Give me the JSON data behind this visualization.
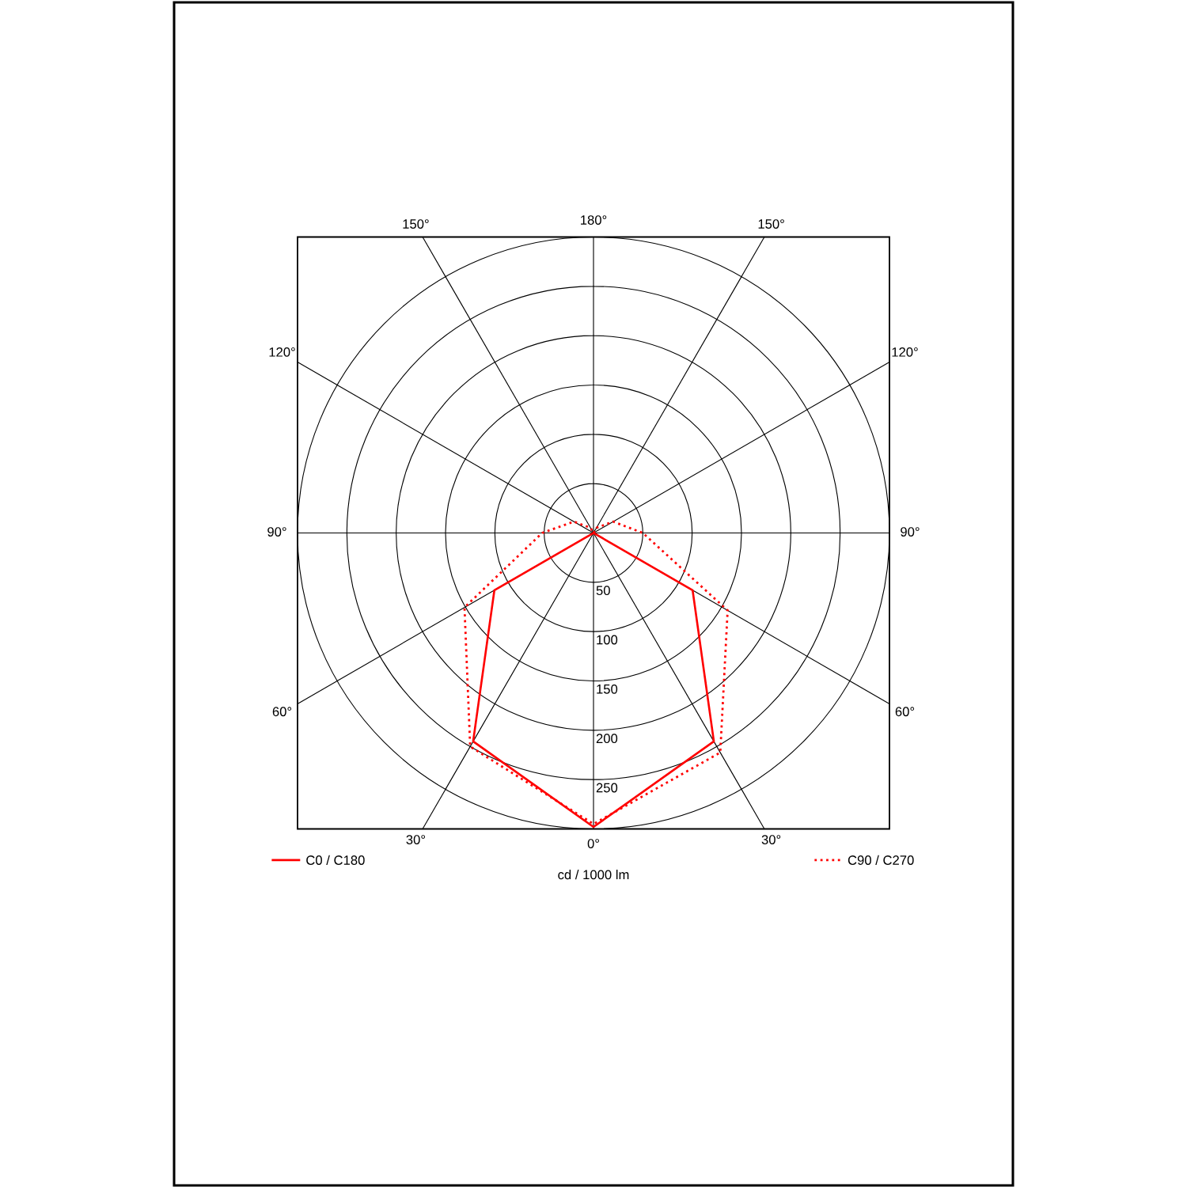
{
  "chart_data": {
    "type": "radar",
    "categories": [
      "180°",
      "150°",
      "120°",
      "90°",
      "60°",
      "30°",
      "0°",
      "30°",
      "60°",
      "90°",
      "120°",
      "150°"
    ],
    "series": [
      {
        "name": "C0 / C180",
        "color": "#ff0000",
        "line_style": "solid",
        "values": [
          0,
          0,
          0,
          0,
          116,
          244,
          298,
          244,
          116,
          0,
          0,
          0
        ]
      },
      {
        "name": "C90 / C270",
        "color": "#ff0000",
        "line_style": "dotted",
        "values": [
          0,
          6,
          23,
          50,
          157,
          257,
          295,
          250,
          151,
          52,
          23,
          6
        ]
      }
    ],
    "ylim": [
      0,
      300
    ],
    "yticks": [
      50,
      100,
      150,
      200,
      250
    ],
    "grid": true,
    "legend": "bottom",
    "xlabel": "cd / 1000 lm"
  }
}
